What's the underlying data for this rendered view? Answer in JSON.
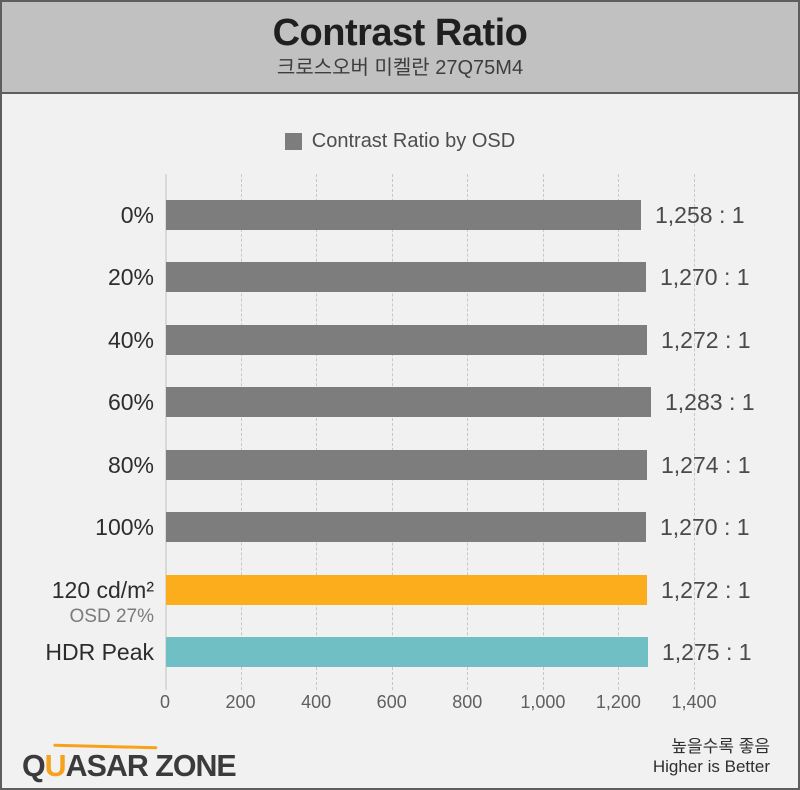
{
  "header": {
    "title": "Contrast Ratio",
    "subtitle": "크로스오버 미켈란 27Q75M4"
  },
  "legend": {
    "label": "Contrast Ratio by OSD",
    "swatch_color": "#7d7d7d"
  },
  "chart_data": {
    "type": "bar",
    "orientation": "horizontal",
    "title": "Contrast Ratio",
    "subtitle": "크로스오버 미켈란 27Q75M4",
    "legend_entries": [
      "Contrast Ratio by OSD"
    ],
    "legend_position": "top-center",
    "categories": [
      "0%",
      "20%",
      "40%",
      "60%",
      "80%",
      "100%",
      "120 cd/m²",
      "HDR Peak"
    ],
    "category_sublabels": [
      "",
      "",
      "",
      "",
      "",
      "",
      "OSD 27%",
      ""
    ],
    "values": [
      1258,
      1270,
      1272,
      1283,
      1274,
      1270,
      1272,
      1275
    ],
    "value_labels": [
      "1,258 : 1",
      "1,270 : 1",
      "1,272 : 1",
      "1,283 : 1",
      "1,274 : 1",
      "1,270 : 1",
      "1,272 : 1",
      "1,275 : 1"
    ],
    "bar_colors": [
      "#7d7d7d",
      "#7d7d7d",
      "#7d7d7d",
      "#7d7d7d",
      "#7d7d7d",
      "#7d7d7d",
      "#fbad1c",
      "#6fbfc4"
    ],
    "xlabel": "",
    "ylabel": "",
    "xlim": [
      0,
      1400
    ],
    "xticks": [
      0,
      200,
      400,
      600,
      800,
      1000,
      1200,
      1400
    ],
    "xtick_labels": [
      "0",
      "200",
      "400",
      "600",
      "800",
      "1,000",
      "1,200",
      "1,400"
    ],
    "grid": "vertical-dashed"
  },
  "footer": {
    "logo": {
      "part1": "Q",
      "part2": "U",
      "part3": "ASAR ZONE"
    },
    "note_kr": "높을수록 좋음",
    "note_en": "Higher is Better"
  },
  "colors": {
    "header_bg": "#c1c1c1",
    "body_bg": "#f1f1f1",
    "frame_border": "#5e5e5e",
    "bar_gray": "#7d7d7d",
    "bar_orange": "#fbad1c",
    "bar_teal": "#6fbfc4",
    "gridline": "#c7c7c7",
    "logo_accent": "#f7a21a"
  }
}
